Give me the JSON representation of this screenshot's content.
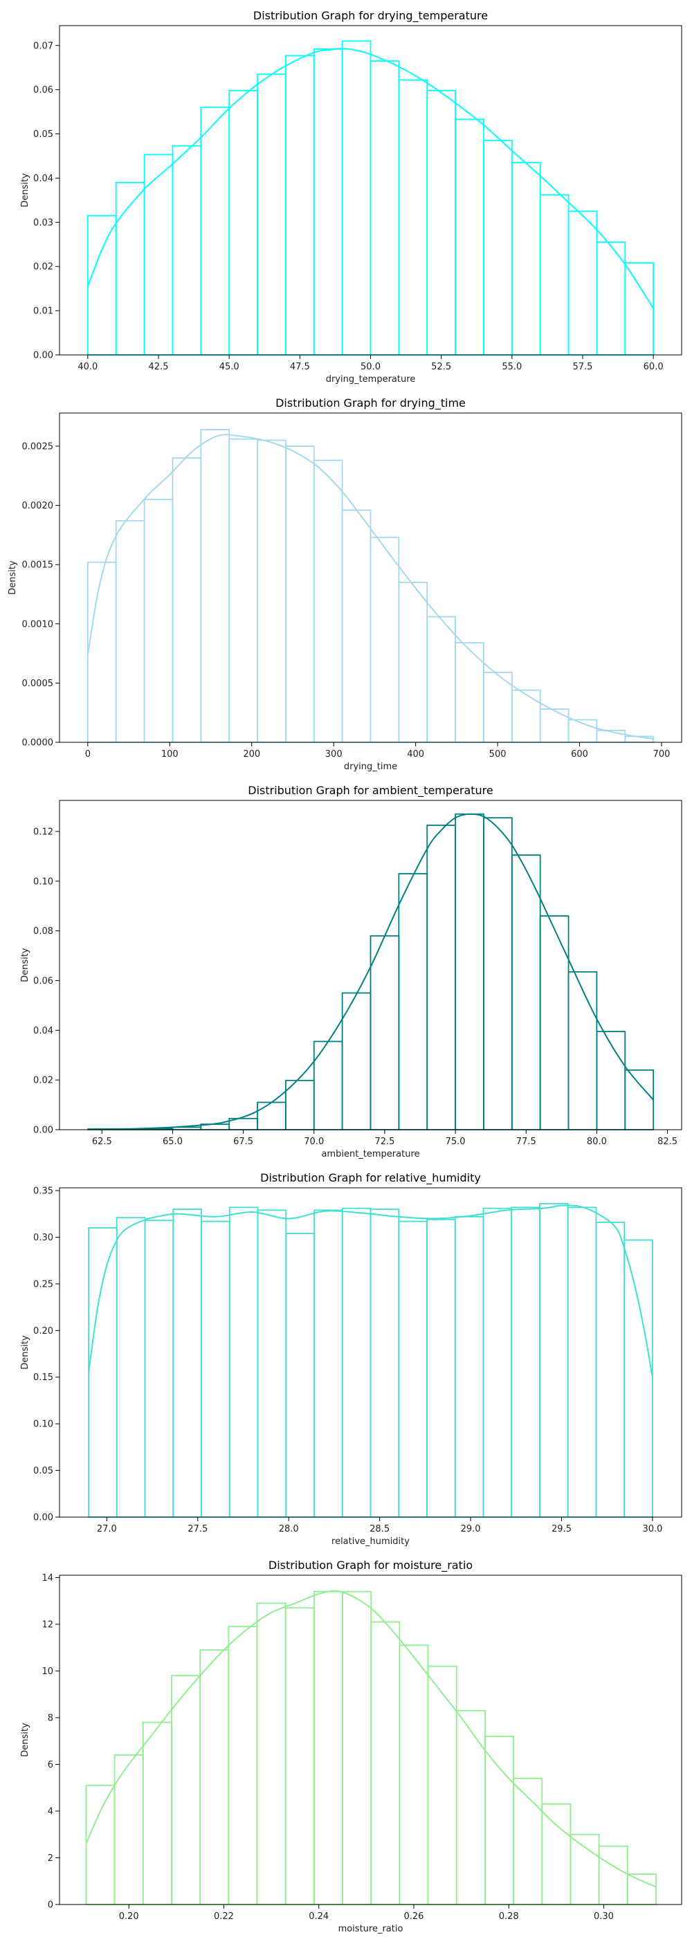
{
  "chart_data": [
    {
      "type": "bar",
      "title": "Distribution Graph for drying_temperature",
      "xlabel": "drying_temperature",
      "ylabel": "Density",
      "color": "#00ffff",
      "xlim": [
        39.0,
        61.0
      ],
      "ylim": [
        0,
        0.0745
      ],
      "xticks": [
        40.0,
        42.5,
        45.0,
        47.5,
        50.0,
        52.5,
        55.0,
        57.5,
        60.0
      ],
      "xtick_labels": [
        "40.0",
        "42.5",
        "45.0",
        "47.5",
        "50.0",
        "52.5",
        "55.0",
        "57.5",
        "60.0"
      ],
      "yticks": [
        0,
        0.01,
        0.02,
        0.03,
        0.04,
        0.05,
        0.06,
        0.07
      ],
      "ytick_labels": [
        "0.00",
        "0.01",
        "0.02",
        "0.03",
        "0.04",
        "0.05",
        "0.06",
        "0.07"
      ],
      "bin_edges": [
        40.0,
        41.0,
        42.0,
        43.0,
        44.0,
        45.0,
        46.0,
        47.0,
        48.0,
        49.0,
        50.0,
        51.0,
        52.0,
        53.0,
        54.0,
        55.0,
        56.0,
        57.0,
        58.0,
        59.0,
        60.0
      ],
      "values": [
        0.0315,
        0.039,
        0.0453,
        0.0473,
        0.056,
        0.0598,
        0.0635,
        0.0677,
        0.0692,
        0.071,
        0.0665,
        0.0622,
        0.0598,
        0.0533,
        0.0485,
        0.0435,
        0.0362,
        0.0325,
        0.0255,
        0.0208
      ],
      "kde": {
        "x": [
          40.0,
          40.5,
          41.0,
          42.0,
          43.0,
          44.0,
          45.0,
          46.0,
          47.0,
          48.0,
          48.5,
          49.0,
          49.5,
          50.0,
          51.0,
          52.0,
          53.0,
          54.0,
          55.0,
          56.0,
          57.0,
          58.0,
          59.0,
          60.0
        ],
        "y": [
          0.0155,
          0.0238,
          0.0298,
          0.0375,
          0.0432,
          0.0492,
          0.0558,
          0.0612,
          0.0654,
          0.0684,
          0.069,
          0.0693,
          0.0689,
          0.068,
          0.0652,
          0.0615,
          0.057,
          0.052,
          0.0462,
          0.0405,
          0.0345,
          0.0283,
          0.0205,
          0.0105
        ]
      }
    },
    {
      "type": "bar",
      "title": "Distribution Graph for drying_time",
      "xlabel": "drying_time",
      "ylabel": "Density",
      "color": "#a4d8ee",
      "xlim": [
        -34.5,
        724.5
      ],
      "ylim": [
        0,
        0.00278
      ],
      "xticks": [
        0,
        100,
        200,
        300,
        400,
        500,
        600,
        700
      ],
      "xtick_labels": [
        "0",
        "100",
        "200",
        "300",
        "400",
        "500",
        "600",
        "700"
      ],
      "yticks": [
        0,
        0.0005,
        0.001,
        0.0015,
        0.002,
        0.0025
      ],
      "ytick_labels": [
        "0.0000",
        "0.0005",
        "0.0010",
        "0.0015",
        "0.0020",
        "0.0025"
      ],
      "bin_edges": [
        0,
        34.5,
        69,
        103.5,
        138,
        172.5,
        207,
        241.5,
        276,
        310.5,
        345,
        379.5,
        414,
        448.5,
        483,
        517.5,
        552,
        586.5,
        621,
        655.5,
        690
      ],
      "values": [
        0.00152,
        0.00187,
        0.00205,
        0.0024,
        0.00264,
        0.00256,
        0.00255,
        0.0025,
        0.00238,
        0.00196,
        0.00173,
        0.00135,
        0.00106,
        0.00084,
        0.00059,
        0.00044,
        0.00028,
        0.00019,
        0.0001,
        5e-05
      ],
      "kde": {
        "x": [
          0,
          15,
          35,
          70,
          100,
          130,
          160,
          190,
          220,
          250,
          280,
          310,
          340,
          380,
          420,
          460,
          500,
          540,
          580,
          620,
          660,
          690
        ],
        "y": [
          0.00074,
          0.00135,
          0.00175,
          0.00206,
          0.00226,
          0.00247,
          0.00259,
          0.00258,
          0.00254,
          0.00246,
          0.00233,
          0.00212,
          0.00185,
          0.00148,
          0.00113,
          0.00082,
          0.00057,
          0.00038,
          0.00023,
          0.00012,
          6e-05,
          3e-05
        ]
      }
    },
    {
      "type": "bar",
      "title": "Distribution Graph for ambient_temperature",
      "xlabel": "ambient_temperature",
      "ylabel": "Density",
      "color": "#008080",
      "xlim": [
        61.0,
        83.0
      ],
      "ylim": [
        0,
        0.1325
      ],
      "xticks": [
        62.5,
        65.0,
        67.5,
        70.0,
        72.5,
        75.0,
        77.5,
        80.0,
        82.5
      ],
      "xtick_labels": [
        "62.5",
        "65.0",
        "67.5",
        "70.0",
        "72.5",
        "75.0",
        "77.5",
        "80.0",
        "82.5"
      ],
      "yticks": [
        0,
        0.02,
        0.04,
        0.06,
        0.08,
        0.1,
        0.12
      ],
      "ytick_labels": [
        "0.00",
        "0.02",
        "0.04",
        "0.06",
        "0.08",
        "0.10",
        "0.12"
      ],
      "bin_edges": [
        62.0,
        63.0,
        64.0,
        65.0,
        66.0,
        67.0,
        68.0,
        69.0,
        70.0,
        71.0,
        72.0,
        73.0,
        74.0,
        75.0,
        76.0,
        77.0,
        78.0,
        79.0,
        80.0,
        81.0,
        82.0
      ],
      "values": [
        0.0002,
        0.0003,
        0.0005,
        0.001,
        0.0022,
        0.0045,
        0.011,
        0.0198,
        0.0355,
        0.055,
        0.078,
        0.103,
        0.1225,
        0.127,
        0.1255,
        0.1105,
        0.086,
        0.0635,
        0.0395,
        0.024
      ],
      "kde": {
        "x": [
          62.0,
          64.0,
          66.0,
          67.0,
          68.0,
          69.0,
          70.0,
          71.0,
          72.0,
          73.0,
          74.0,
          74.5,
          75.0,
          75.5,
          76.0,
          76.5,
          77.0,
          77.5,
          78.0,
          79.0,
          80.0,
          81.0,
          82.0
        ],
        "y": [
          0.0002,
          0.0005,
          0.0018,
          0.0035,
          0.0075,
          0.0155,
          0.0275,
          0.0445,
          0.0655,
          0.0905,
          0.113,
          0.1205,
          0.1255,
          0.127,
          0.126,
          0.1215,
          0.1145,
          0.1045,
          0.093,
          0.0685,
          0.0445,
          0.0255,
          0.012
        ]
      }
    },
    {
      "type": "bar",
      "title": "Distribution Graph for relative_humidity",
      "xlabel": "relative_humidity",
      "ylabel": "Density",
      "color": "#40e0d0",
      "xlim": [
        26.74,
        30.16
      ],
      "ylim": [
        0,
        0.353
      ],
      "xticks": [
        27.0,
        27.5,
        28.0,
        28.5,
        29.0,
        29.5,
        30.0
      ],
      "xtick_labels": [
        "27.0",
        "27.5",
        "28.0",
        "28.5",
        "29.0",
        "29.5",
        "30.0"
      ],
      "yticks": [
        0,
        0.05,
        0.1,
        0.15,
        0.2,
        0.25,
        0.3,
        0.35
      ],
      "ytick_labels": [
        "0.00",
        "0.05",
        "0.10",
        "0.15",
        "0.20",
        "0.25",
        "0.30",
        "0.35"
      ],
      "bin_edges": [
        26.9,
        27.055,
        27.21,
        27.365,
        27.52,
        27.675,
        27.83,
        27.985,
        28.14,
        28.295,
        28.45,
        28.605,
        28.76,
        28.915,
        29.07,
        29.225,
        29.38,
        29.535,
        29.69,
        29.845,
        30.0
      ],
      "values": [
        0.31,
        0.321,
        0.318,
        0.33,
        0.317,
        0.332,
        0.329,
        0.304,
        0.329,
        0.331,
        0.33,
        0.317,
        0.319,
        0.322,
        0.331,
        0.332,
        0.336,
        0.332,
        0.316,
        0.297
      ],
      "kde": {
        "x": [
          26.9,
          26.95,
          27.0,
          27.05,
          27.1,
          27.2,
          27.3,
          27.4,
          27.6,
          27.8,
          28.0,
          28.2,
          28.4,
          28.6,
          28.8,
          29.0,
          29.2,
          29.4,
          29.5,
          29.6,
          29.7,
          29.8,
          29.85,
          29.9,
          29.95,
          30.0
        ],
        "y": [
          0.155,
          0.225,
          0.27,
          0.295,
          0.308,
          0.318,
          0.323,
          0.325,
          0.322,
          0.327,
          0.32,
          0.328,
          0.326,
          0.322,
          0.32,
          0.323,
          0.329,
          0.331,
          0.334,
          0.333,
          0.325,
          0.31,
          0.285,
          0.25,
          0.205,
          0.15
        ]
      }
    },
    {
      "type": "bar",
      "title": "Distribution Graph for moisture_ratio",
      "xlabel": "moisture_ratio",
      "ylabel": "Density",
      "color": "#90ee90",
      "xlim": [
        0.1854,
        0.3164
      ],
      "ylim": [
        0,
        14.1
      ],
      "xticks": [
        0.2,
        0.22,
        0.24,
        0.26,
        0.28,
        0.3
      ],
      "xtick_labels": [
        "0.20",
        "0.22",
        "0.24",
        "0.26",
        "0.28",
        "0.30"
      ],
      "yticks": [
        0,
        2,
        4,
        6,
        8,
        10,
        12,
        14
      ],
      "ytick_labels": [
        "0",
        "2",
        "4",
        "6",
        "8",
        "10",
        "12",
        "14"
      ],
      "bin_edges": [
        0.191,
        0.197,
        0.203,
        0.209,
        0.215,
        0.221,
        0.227,
        0.233,
        0.239,
        0.245,
        0.251,
        0.257,
        0.263,
        0.269,
        0.275,
        0.281,
        0.287,
        0.293,
        0.299,
        0.305,
        0.311
      ],
      "values": [
        5.1,
        6.4,
        7.8,
        9.8,
        10.9,
        11.9,
        12.9,
        12.7,
        13.4,
        13.4,
        12.1,
        11.1,
        10.2,
        8.3,
        7.2,
        5.4,
        4.3,
        3.0,
        2.5,
        1.3
      ],
      "kde": {
        "x": [
          0.191,
          0.194,
          0.197,
          0.2,
          0.205,
          0.21,
          0.215,
          0.22,
          0.225,
          0.23,
          0.235,
          0.24,
          0.244,
          0.248,
          0.252,
          0.256,
          0.26,
          0.265,
          0.27,
          0.275,
          0.28,
          0.285,
          0.29,
          0.295,
          0.3,
          0.305,
          0.311
        ],
        "y": [
          2.6,
          4.0,
          5.1,
          6.0,
          7.3,
          8.6,
          9.8,
          10.9,
          11.8,
          12.5,
          12.9,
          13.3,
          13.42,
          13.1,
          12.5,
          11.6,
          10.6,
          9.3,
          8.0,
          6.6,
          5.4,
          4.4,
          3.4,
          2.6,
          1.9,
          1.3,
          0.75
        ]
      }
    }
  ]
}
